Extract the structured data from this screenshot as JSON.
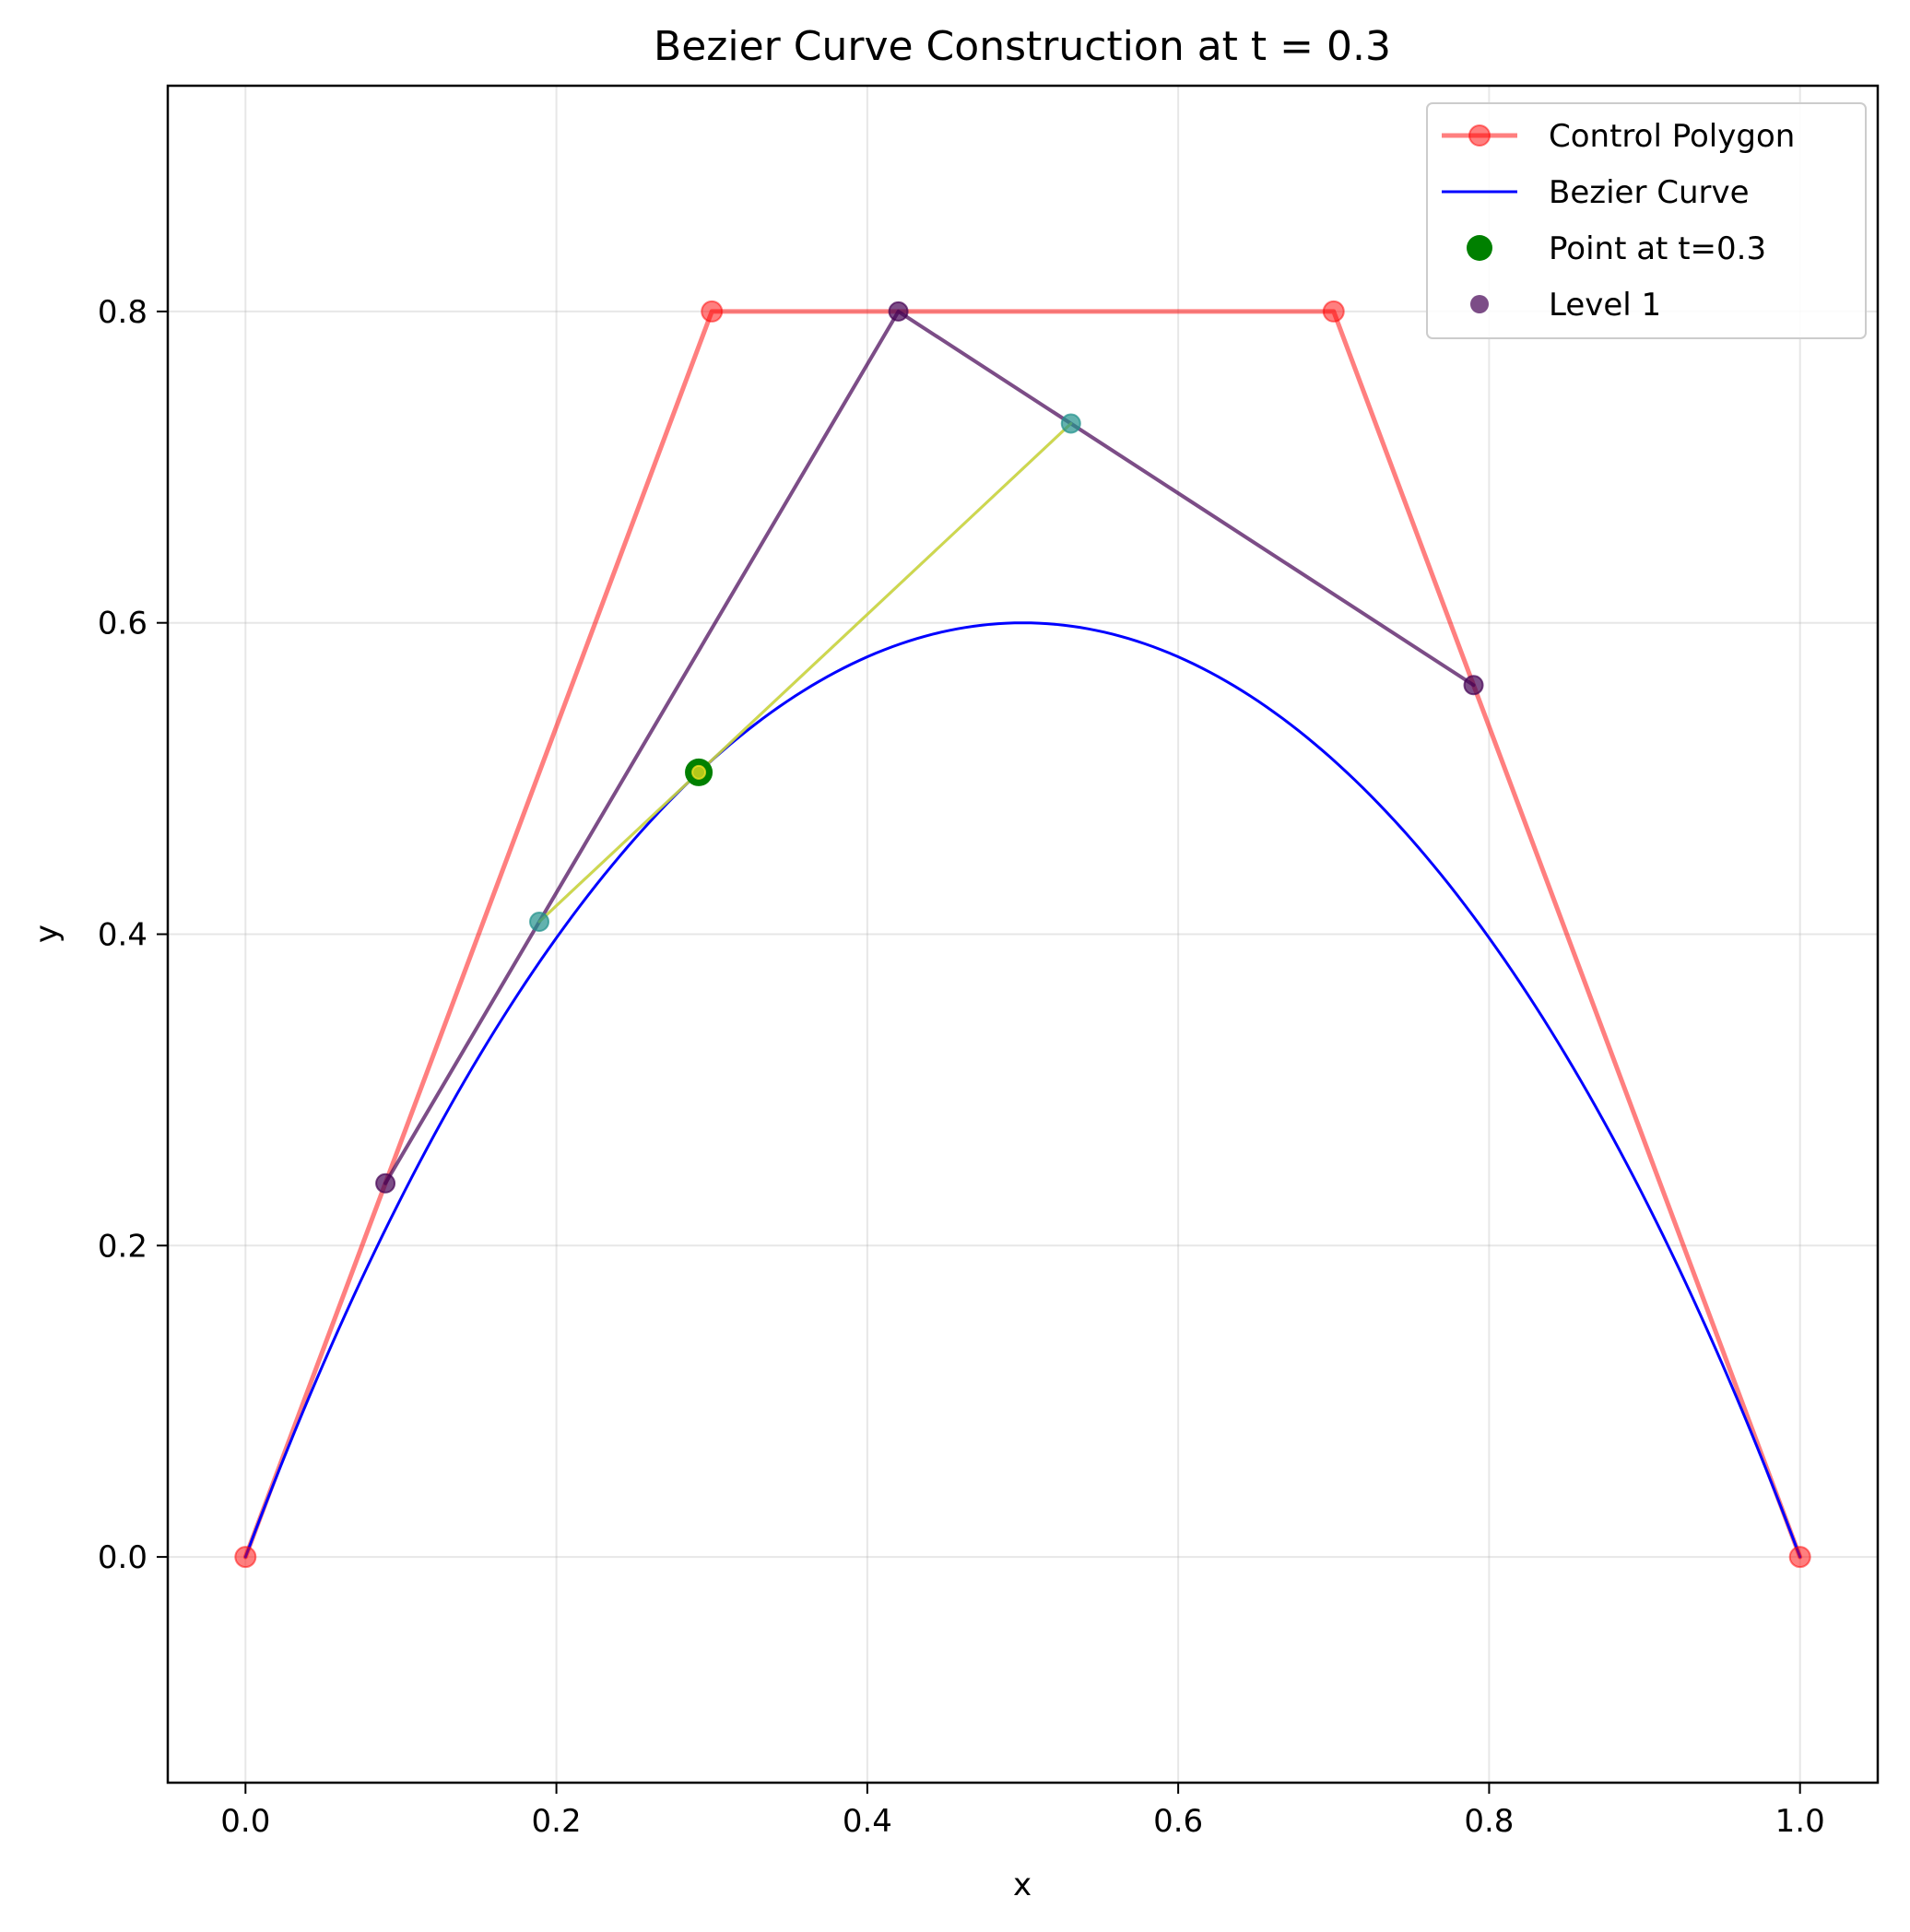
{
  "chart_data": {
    "type": "line",
    "title": "Bezier Curve Construction at t = 0.3",
    "xlabel": "x",
    "ylabel": "y",
    "xlim": [
      -0.05,
      1.05
    ],
    "ylim": [
      -0.145,
      0.945
    ],
    "xticks": [
      0.0,
      0.2,
      0.4,
      0.6,
      0.8,
      1.0
    ],
    "yticks": [
      0.0,
      0.2,
      0.4,
      0.6,
      0.8
    ],
    "xtick_labels": [
      "0.0",
      "0.2",
      "0.4",
      "0.6",
      "0.8",
      "1.0"
    ],
    "ytick_labels": [
      "0.0",
      "0.2",
      "0.4",
      "0.6",
      "0.8"
    ],
    "grid": true,
    "legend_position": "top-right",
    "t": 0.3,
    "series": [
      {
        "name": "Control Polygon",
        "kind": "line-with-markers",
        "color": "#ff0000",
        "points": [
          [
            0.0,
            0.0
          ],
          [
            0.3,
            0.8
          ],
          [
            0.7,
            0.8
          ],
          [
            1.0,
            0.0
          ]
        ]
      },
      {
        "name": "Bezier Curve",
        "kind": "curve",
        "color": "#0000ff",
        "control_points": [
          [
            0.0,
            0.0
          ],
          [
            0.3,
            0.8
          ],
          [
            0.7,
            0.8
          ],
          [
            1.0,
            0.0
          ]
        ],
        "vertex": [
          0.5,
          0.6
        ]
      },
      {
        "name": "Level 1",
        "kind": "line-with-markers",
        "color": "#440154",
        "points": [
          [
            0.09,
            0.24
          ],
          [
            0.42,
            0.8
          ],
          [
            0.79,
            0.56
          ]
        ]
      },
      {
        "name": "",
        "kind": "line-with-markers",
        "color": "#21918c",
        "points": [
          [
            0.189,
            0.408
          ],
          [
            0.531,
            0.728
          ]
        ]
      },
      {
        "name": "",
        "kind": "line-with-markers",
        "color": "#fde725",
        "points": [
          [
            0.2916,
            0.504
          ]
        ]
      },
      {
        "name": "Point at t=0.3",
        "kind": "marker",
        "color": "#008000",
        "points": [
          [
            0.2916,
            0.504
          ]
        ]
      }
    ],
    "legend": [
      {
        "label": "Control Polygon",
        "style": "line-marker",
        "color": "#ff0000"
      },
      {
        "label": "Bezier Curve",
        "style": "line",
        "color": "#0000ff"
      },
      {
        "label": "Point at t=0.3",
        "style": "marker-large",
        "color": "#008000"
      },
      {
        "label": "Level 1",
        "style": "marker",
        "color": "#440154"
      }
    ]
  }
}
